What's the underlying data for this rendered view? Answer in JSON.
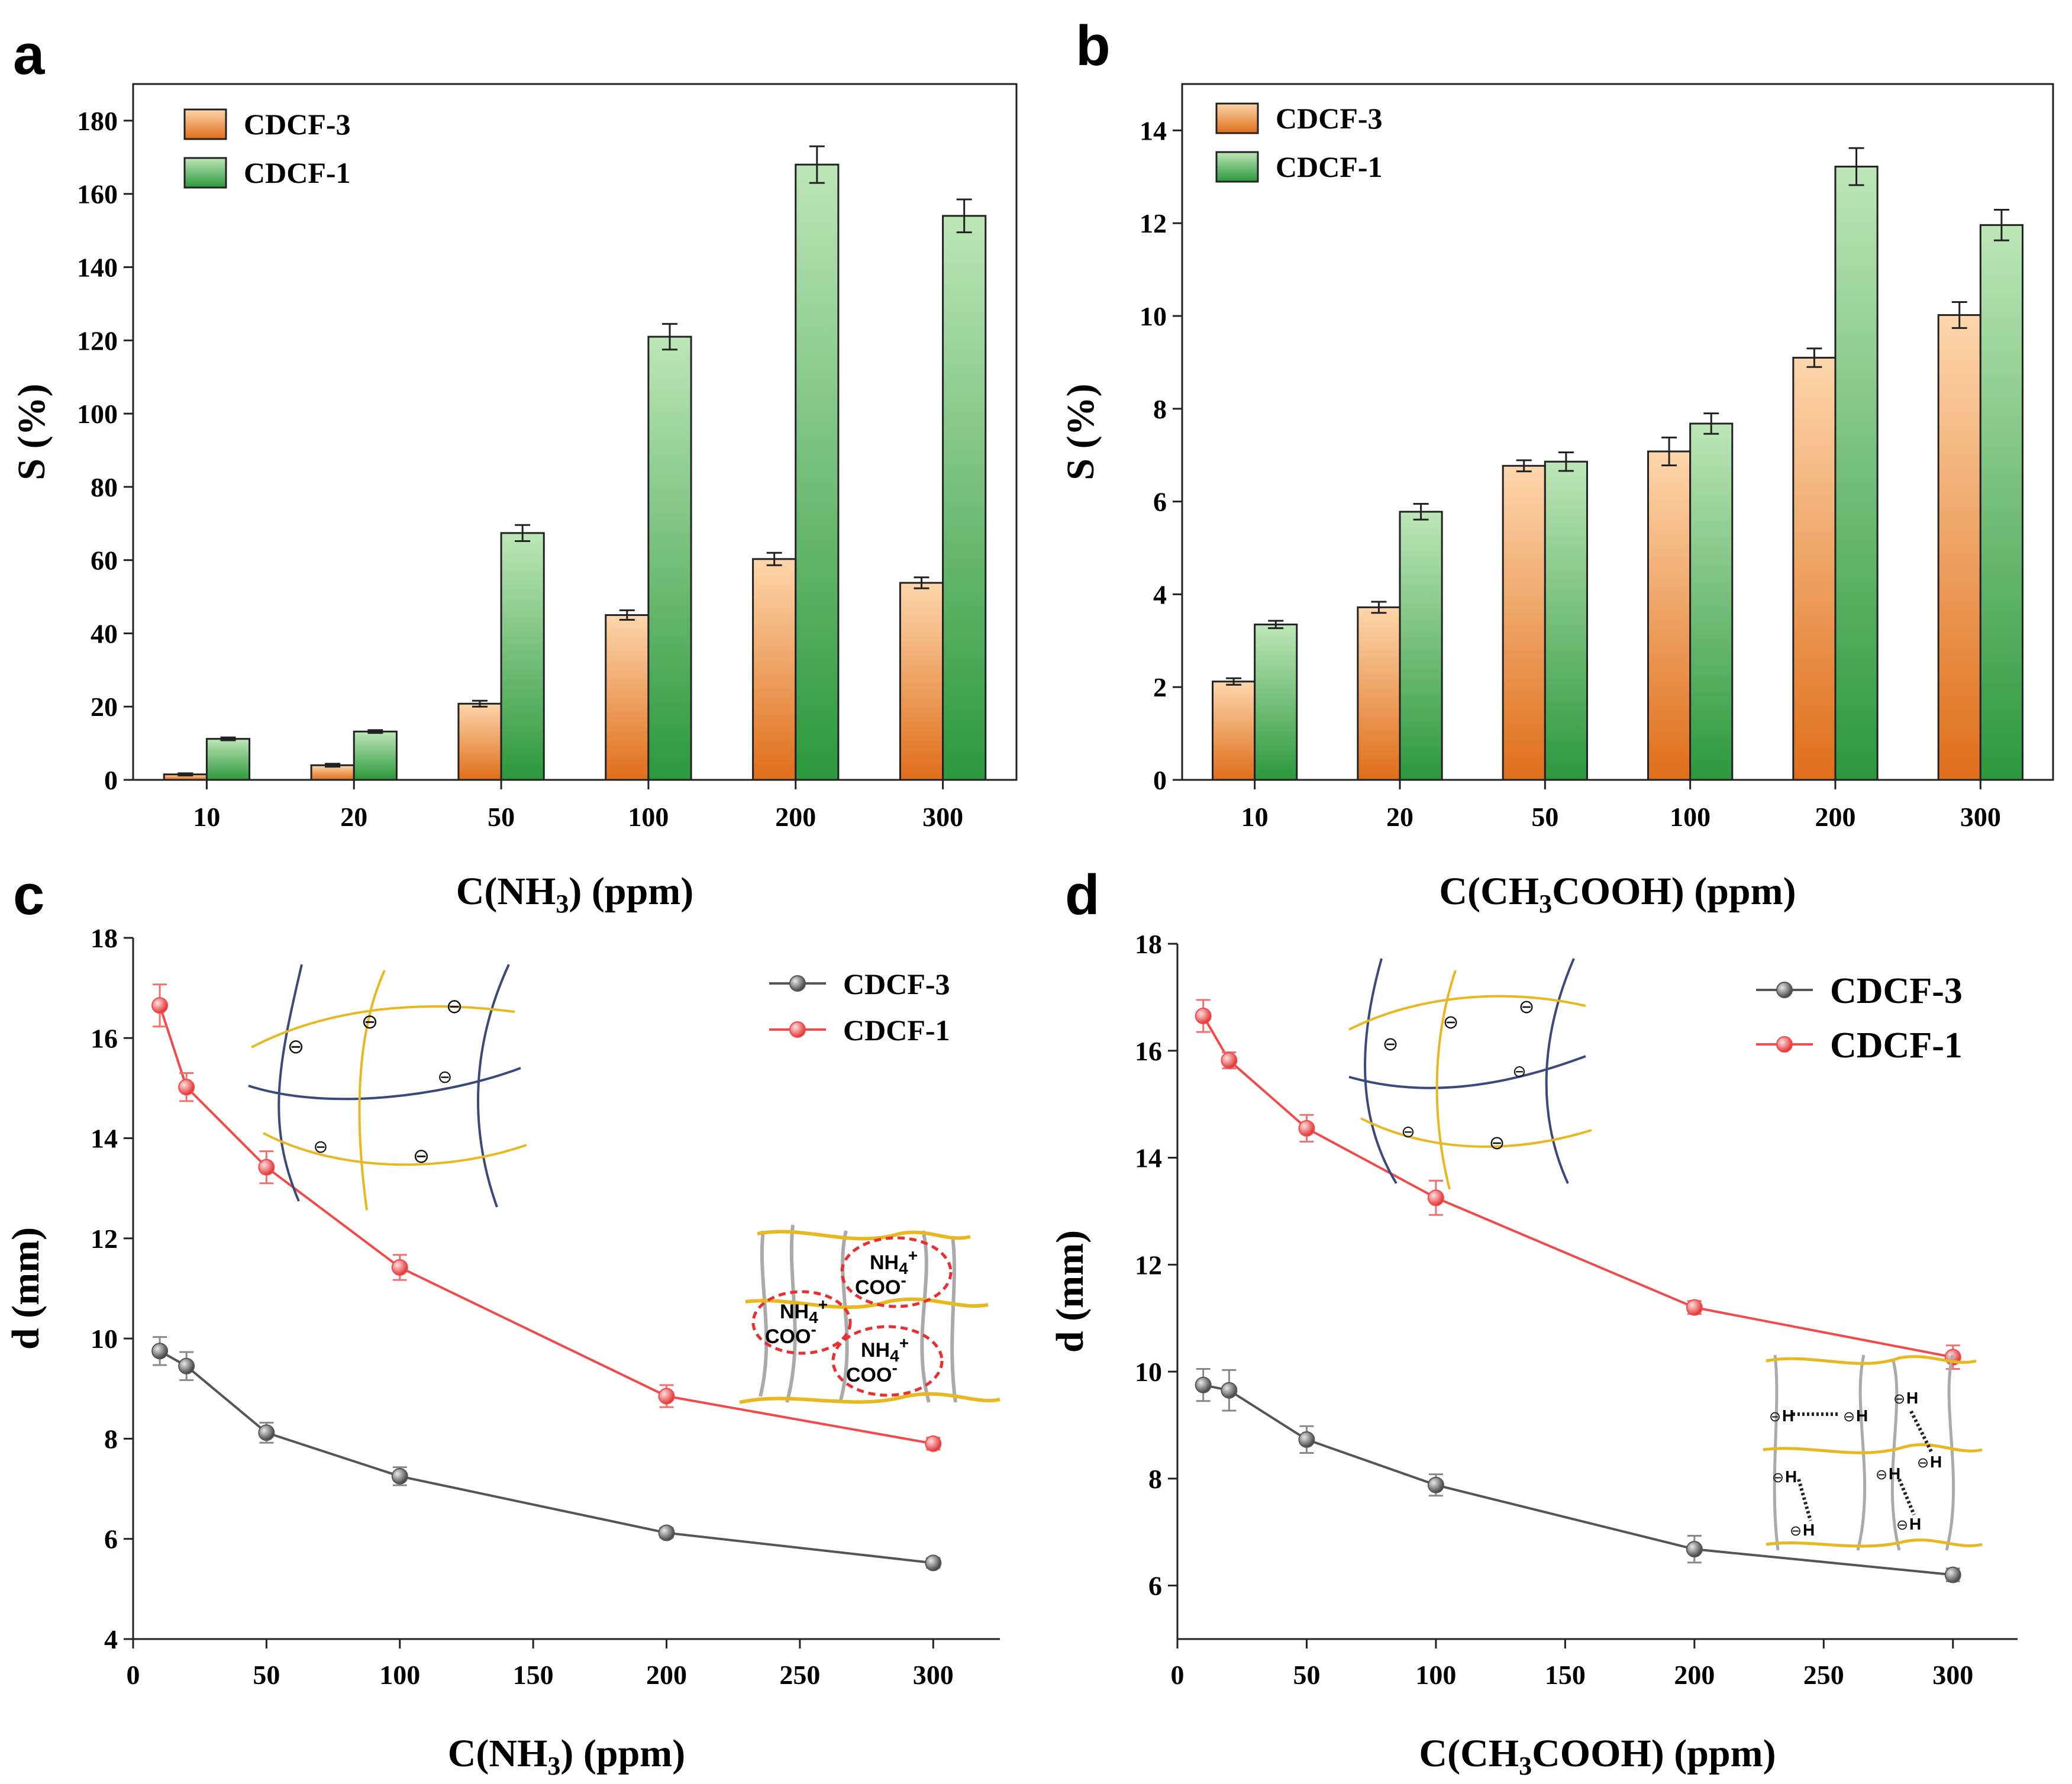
{
  "chart_data": [
    {
      "panel": "a",
      "type": "bar",
      "categories": [
        "10",
        "20",
        "50",
        "100",
        "200",
        "300"
      ],
      "series": [
        {
          "name": "CDCF-3",
          "values": [
            1.5,
            4,
            20.8,
            45,
            60.3,
            53.8
          ],
          "errors": [
            0.3,
            0.4,
            0.8,
            1.3,
            1.7,
            1.5
          ]
        },
        {
          "name": "CDCF-1",
          "values": [
            11.2,
            13.2,
            67.4,
            121,
            168,
            154
          ],
          "errors": [
            0.4,
            0.4,
            2.2,
            3.5,
            5,
            4.5
          ]
        }
      ],
      "ylabel": "S (%)",
      "xlabel_main": "C(NH",
      "xlabel_sub": "3",
      "xlabel_tail": ") (ppm)",
      "ylim": [
        0,
        190
      ],
      "yticks": [
        "0",
        "20",
        "40",
        "60",
        "80",
        "100",
        "120",
        "140",
        "160",
        "180"
      ],
      "legend": "top-left"
    },
    {
      "panel": "b",
      "type": "bar",
      "categories": [
        "10",
        "20",
        "50",
        "100",
        "200",
        "300"
      ],
      "series": [
        {
          "name": "CDCF-3",
          "values": [
            2.12,
            3.72,
            6.77,
            7.08,
            9.1,
            10.02
          ],
          "errors": [
            0.07,
            0.12,
            0.12,
            0.3,
            0.2,
            0.28
          ]
        },
        {
          "name": "CDCF-1",
          "values": [
            3.35,
            5.78,
            6.86,
            7.68,
            13.22,
            11.96
          ],
          "errors": [
            0.08,
            0.17,
            0.2,
            0.22,
            0.4,
            0.33
          ]
        }
      ],
      "ylabel": "S (%)",
      "xlabel_main": "C(CH",
      "xlabel_sub": "3",
      "xlabel_tail": "COOH) (ppm)",
      "ylim": [
        0,
        15
      ],
      "yticks": [
        "0",
        "2",
        "4",
        "6",
        "8",
        "10",
        "12",
        "14"
      ],
      "legend": "top-left"
    },
    {
      "panel": "c",
      "type": "line",
      "x": [
        10,
        20,
        50,
        100,
        200,
        300
      ],
      "series": [
        {
          "name": "CDCF-3",
          "values": [
            9.75,
            9.45,
            8.12,
            7.25,
            6.12,
            5.52
          ],
          "errors": [
            0.28,
            0.28,
            0.2,
            0.18,
            0.1,
            0.1
          ]
        },
        {
          "name": "CDCF-1",
          "values": [
            16.65,
            15.02,
            13.42,
            11.42,
            8.85,
            7.9
          ],
          "errors": [
            0.42,
            0.28,
            0.32,
            0.25,
            0.22,
            0.12
          ]
        }
      ],
      "ylabel": "d (mm)",
      "xlabel_main": "C(NH",
      "xlabel_sub": "3",
      "xlabel_tail": ") (ppm)",
      "xlim": [
        0,
        325
      ],
      "ylim": [
        4,
        18
      ],
      "xticks": [
        "0",
        "50",
        "100",
        "150",
        "200",
        "250",
        "300"
      ],
      "yticks": [
        "4",
        "6",
        "8",
        "10",
        "12",
        "14",
        "16",
        "18"
      ],
      "legend": "top-right",
      "annotations": {
        "inset_charge": "⊖",
        "ion_pairs": [
          {
            "cation_main": "NH",
            "cation_sub": "4",
            "cation_sup": "+",
            "anion": "COO",
            "anion_sup": "-"
          },
          {
            "cation_main": "NH",
            "cation_sub": "4",
            "cation_sup": "+",
            "anion": "COO",
            "anion_sup": "-"
          },
          {
            "cation_main": "NH",
            "cation_sub": "4",
            "cation_sup": "+",
            "anion": "COO",
            "anion_sup": "-"
          }
        ]
      }
    },
    {
      "panel": "d",
      "type": "line",
      "x": [
        10,
        20,
        50,
        100,
        200,
        300
      ],
      "series": [
        {
          "name": "CDCF-3",
          "values": [
            9.75,
            9.65,
            8.73,
            7.88,
            6.68,
            6.2
          ],
          "errors": [
            0.3,
            0.38,
            0.25,
            0.2,
            0.25,
            0.12
          ]
        },
        {
          "name": "CDCF-1",
          "values": [
            16.65,
            15.82,
            14.55,
            13.25,
            11.2,
            10.27
          ],
          "errors": [
            0.3,
            0.15,
            0.25,
            0.32,
            0.12,
            0.22
          ]
        }
      ],
      "ylabel": "d (mm)",
      "xlabel_main": "C(CH",
      "xlabel_sub": "3",
      "xlabel_tail": "COOH) (ppm)",
      "xlim": [
        0,
        325
      ],
      "ylim": [
        5,
        18
      ],
      "xticks": [
        "0",
        "50",
        "100",
        "150",
        "200",
        "250",
        "300"
      ],
      "yticks": [
        "6",
        "8",
        "10",
        "12",
        "14",
        "16",
        "18"
      ],
      "legend": "top-right",
      "annotations": {
        "inset_charge": "⊖",
        "hbond_label": "H"
      }
    }
  ],
  "colors": {
    "cdcf3_bar_top": "#fdd4a8",
    "cdcf3_bar_bottom": "#e0701c",
    "cdcf1_bar_top": "#b8e4b4",
    "cdcf1_bar_bottom": "#2e9a3e",
    "cdcf3_line": "#555555",
    "cdcf1_line": "#f24a4a",
    "inset_blue": "#3a4a7a",
    "inset_yellow": "#e8b820"
  }
}
